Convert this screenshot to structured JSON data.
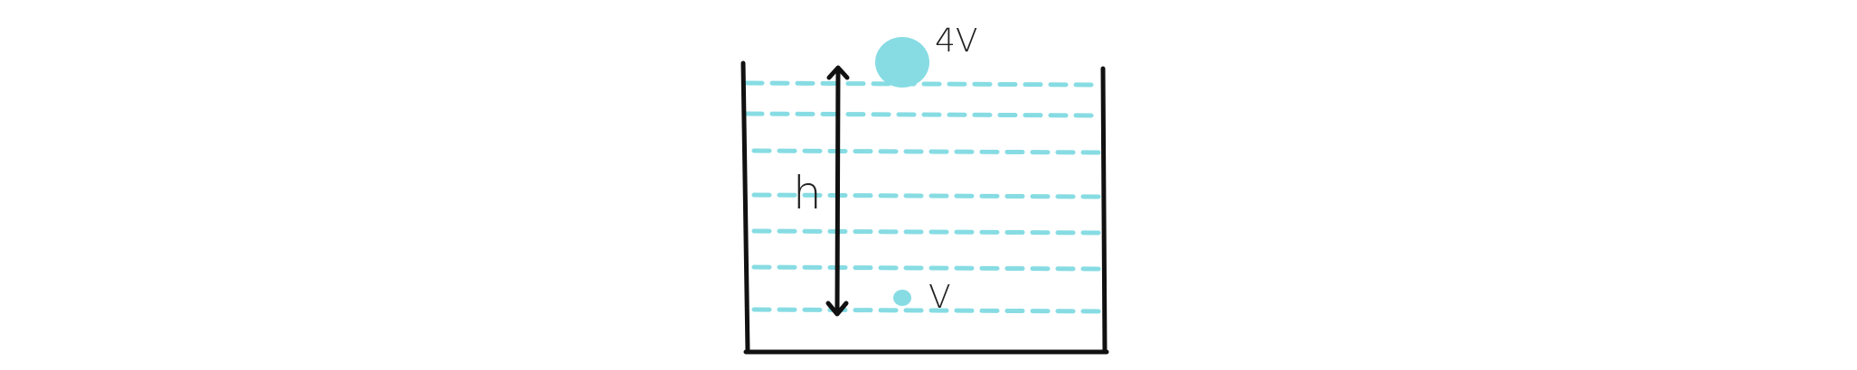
{
  "diagram": {
    "labels": {
      "top_bubble_volume": "4V",
      "height": "h",
      "bottom_bubble_volume": "V"
    },
    "colors": {
      "water": "#87dce3",
      "container": "#111111",
      "arrow": "#111111",
      "text": "#222222"
    },
    "icons": {
      "arrow": "double-headed-vertical-arrow",
      "bubble": "circle"
    }
  }
}
